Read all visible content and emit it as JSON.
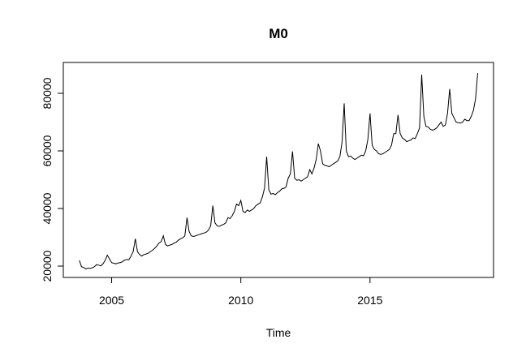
{
  "chart_data": {
    "type": "line",
    "title": "M0",
    "x_label": "Time",
    "x": [
      2003.75,
      2003.833,
      2003.917,
      2004,
      2004.083,
      2004.167,
      2004.25,
      2004.333,
      2004.417,
      2004.5,
      2004.583,
      2004.667,
      2004.75,
      2004.833,
      2004.917,
      2005,
      2005.083,
      2005.167,
      2005.25,
      2005.333,
      2005.417,
      2005.5,
      2005.583,
      2005.667,
      2005.75,
      2005.833,
      2005.917,
      2006,
      2006.083,
      2006.167,
      2006.25,
      2006.333,
      2006.417,
      2006.5,
      2006.583,
      2006.667,
      2006.75,
      2006.833,
      2006.917,
      2007,
      2007.083,
      2007.167,
      2007.25,
      2007.333,
      2007.417,
      2007.5,
      2007.583,
      2007.667,
      2007.75,
      2007.833,
      2007.917,
      2008,
      2008.083,
      2008.167,
      2008.25,
      2008.333,
      2008.417,
      2008.5,
      2008.583,
      2008.667,
      2008.75,
      2008.833,
      2008.917,
      2009,
      2009.083,
      2009.167,
      2009.25,
      2009.333,
      2009.417,
      2009.5,
      2009.583,
      2009.667,
      2009.75,
      2009.833,
      2009.917,
      2010,
      2010.083,
      2010.167,
      2010.25,
      2010.333,
      2010.417,
      2010.5,
      2010.583,
      2010.667,
      2010.75,
      2010.833,
      2010.917,
      2011,
      2011.083,
      2011.167,
      2011.25,
      2011.333,
      2011.417,
      2011.5,
      2011.583,
      2011.667,
      2011.75,
      2011.833,
      2011.917,
      2012,
      2012.083,
      2012.167,
      2012.25,
      2012.333,
      2012.417,
      2012.5,
      2012.583,
      2012.667,
      2012.75,
      2012.833,
      2012.917,
      2013,
      2013.083,
      2013.167,
      2013.25,
      2013.333,
      2013.417,
      2013.5,
      2013.583,
      2013.667,
      2013.75,
      2013.833,
      2013.917,
      2014,
      2014.083,
      2014.167,
      2014.25,
      2014.333,
      2014.417,
      2014.5,
      2014.583,
      2014.667,
      2014.75,
      2014.833,
      2014.917,
      2015,
      2015.083,
      2015.167,
      2015.25,
      2015.333,
      2015.417,
      2015.5,
      2015.583,
      2015.667,
      2015.75,
      2015.833,
      2015.917,
      2016,
      2016.083,
      2016.167,
      2016.25,
      2016.333,
      2016.417,
      2016.5,
      2016.583,
      2016.667,
      2016.75,
      2016.833,
      2016.917,
      2017,
      2017.083,
      2017.167,
      2017.25,
      2017.333,
      2017.417,
      2017.5,
      2017.583,
      2017.667,
      2017.75,
      2017.833,
      2017.917,
      2018,
      2018.083,
      2018.167,
      2018.25,
      2018.333,
      2018.417,
      2018.5,
      2018.583,
      2018.667,
      2018.75,
      2018.833,
      2018.917,
      2019,
      2019.083,
      2019.167
    ],
    "values": [
      22000,
      19800,
      19500,
      19000,
      19300,
      19200,
      19400,
      19800,
      20500,
      20300,
      20100,
      20800,
      22000,
      23800,
      22500,
      21200,
      21000,
      20800,
      21100,
      21200,
      21500,
      22100,
      22300,
      22200,
      23500,
      25000,
      29500,
      25000,
      24000,
      23500,
      24000,
      24200,
      24500,
      25000,
      25500,
      26200,
      27000,
      28000,
      28500,
      30500,
      27500,
      27000,
      27300,
      27500,
      28000,
      28300,
      29000,
      29500,
      29800,
      30500,
      36800,
      32000,
      30500,
      30300,
      30500,
      30800,
      31000,
      31300,
      31500,
      31800,
      32500,
      34000,
      41000,
      35000,
      34000,
      33800,
      34200,
      34500,
      35000,
      36800,
      36500,
      37500,
      39000,
      41500,
      41000,
      42800,
      39000,
      38600,
      39500,
      39000,
      39500,
      40000,
      41000,
      41500,
      42000,
      44000,
      47000,
      58000,
      46500,
      45000,
      45200,
      44800,
      45500,
      46000,
      46800,
      47000,
      47500,
      50500,
      52000,
      59800,
      50500,
      49800,
      50000,
      49500,
      50000,
      50500,
      51000,
      53500,
      52000,
      54000,
      57000,
      62500,
      60000,
      55500,
      55000,
      54800,
      54500,
      55000,
      55500,
      56000,
      56500,
      58000,
      63000,
      76500,
      60000,
      58000,
      58200,
      57500,
      57000,
      57500,
      58000,
      58500,
      58300,
      60000,
      64000,
      73000,
      62000,
      60500,
      60000,
      59000,
      58800,
      59000,
      59500,
      60000,
      60500,
      62000,
      66000,
      66000,
      72500,
      66000,
      64500,
      64000,
      63200,
      63500,
      63800,
      64500,
      64300,
      66000,
      68000,
      86500,
      72000,
      68500,
      68300,
      67500,
      67200,
      67500,
      68000,
      69000,
      70000,
      68500,
      69000,
      73000,
      81500,
      73000,
      71500,
      70000,
      69800,
      69700,
      70000,
      71000,
      70500,
      70500,
      72000,
      74000,
      78000,
      87000
    ],
    "color": "#000000",
    "xlim": [
      2003.13,
      2019.78
    ],
    "xticks": [
      2005,
      2010,
      2015
    ],
    "ylim": [
      16060,
      90700
    ],
    "yticks": [
      20000,
      40000,
      60000,
      80000
    ]
  }
}
